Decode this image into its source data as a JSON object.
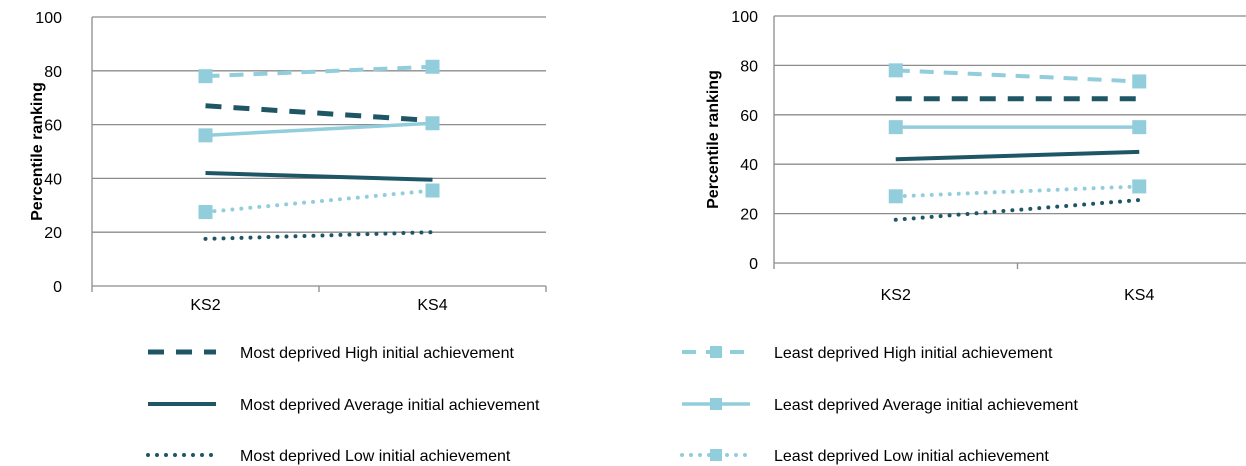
{
  "colors": {
    "most_deprived": "#1f5665",
    "least_deprived": "#92cddc",
    "grid": "#8c8c8c"
  },
  "legend": {
    "items": [
      {
        "key": "most_high",
        "label": "Most deprived High initial achievement"
      },
      {
        "key": "least_high",
        "label": "Least deprived High initial achievement"
      },
      {
        "key": "most_avg",
        "label": "Most deprived Average initial achievement"
      },
      {
        "key": "least_avg",
        "label": "Least deprived Average initial achievement"
      },
      {
        "key": "most_low",
        "label": "Most deprived Low initial achievement"
      },
      {
        "key": "least_low",
        "label": "Least deprived Low initial achievement"
      }
    ]
  },
  "chart_data": [
    {
      "type": "line",
      "title": "",
      "xlabel": "",
      "ylabel": "Percentile ranking",
      "ylim": [
        0,
        100
      ],
      "yticks": [
        0,
        20,
        40,
        60,
        80,
        100
      ],
      "categories": [
        "KS2",
        "KS4"
      ],
      "grid": true,
      "series": [
        {
          "key": "most_high",
          "name": "Most deprived High initial achievement",
          "values": [
            67,
            61.5
          ]
        },
        {
          "key": "most_avg",
          "name": "Most deprived Average initial achievement",
          "values": [
            42,
            39.5
          ]
        },
        {
          "key": "most_low",
          "name": "Most deprived Low initial achievement",
          "values": [
            17.5,
            20
          ]
        },
        {
          "key": "least_high",
          "name": "Least deprived High initial achievement",
          "values": [
            78,
            81.5
          ]
        },
        {
          "key": "least_avg",
          "name": "Least deprived Average initial achievement",
          "values": [
            56,
            60.5
          ]
        },
        {
          "key": "least_low",
          "name": "Least deprived Low initial achievement",
          "values": [
            27.5,
            35.5
          ]
        }
      ]
    },
    {
      "type": "line",
      "title": "",
      "xlabel": "",
      "ylabel": "Percentile ranking",
      "ylim": [
        0,
        100
      ],
      "yticks": [
        0,
        20,
        40,
        60,
        80,
        100
      ],
      "categories": [
        "KS2",
        "KS4"
      ],
      "grid": true,
      "series": [
        {
          "key": "most_high",
          "name": "Most deprived High initial achievement",
          "values": [
            66.5,
            66.5
          ]
        },
        {
          "key": "most_avg",
          "name": "Most deprived Average initial achievement",
          "values": [
            42,
            45
          ]
        },
        {
          "key": "most_low",
          "name": "Most deprived Low initial achievement",
          "values": [
            17.5,
            25.5
          ]
        },
        {
          "key": "least_high",
          "name": "Least deprived High initial achievement",
          "values": [
            78,
            73.5
          ]
        },
        {
          "key": "least_avg",
          "name": "Least deprived Average initial achievement",
          "values": [
            55,
            55
          ]
        },
        {
          "key": "least_low",
          "name": "Least deprived Low initial achievement",
          "values": [
            27,
            31
          ]
        }
      ]
    }
  ]
}
